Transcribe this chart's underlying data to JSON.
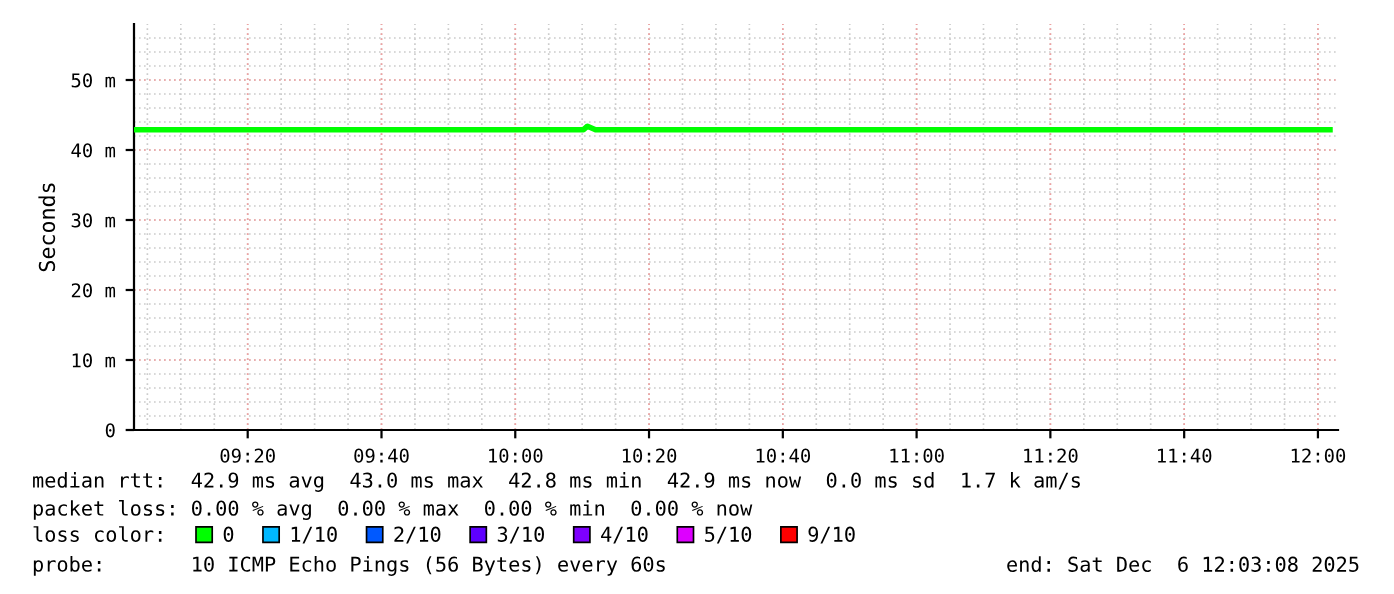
{
  "chart_data": {
    "type": "line",
    "ylabel": "Seconds",
    "x": [
      9.05,
      10.17,
      10.18,
      10.2,
      12.03
    ],
    "series": [
      {
        "name": "0",
        "color": "#00ff00",
        "values": [
          42.9,
          42.9,
          43.4,
          42.9,
          42.9
        ]
      },
      {
        "name": "1/10",
        "color": "#00b8ff",
        "values": [
          null,
          null,
          null,
          null,
          null
        ]
      },
      {
        "name": "2/10",
        "color": "#0059ff",
        "values": [
          null,
          null,
          null,
          null,
          null
        ]
      },
      {
        "name": "3/10",
        "color": "#5e00ff",
        "values": [
          null,
          null,
          null,
          null,
          null
        ]
      },
      {
        "name": "4/10",
        "color": "#7e00ff",
        "values": [
          null,
          null,
          null,
          null,
          null
        ]
      },
      {
        "name": "5/10",
        "color": "#dd00ff",
        "values": [
          null,
          null,
          null,
          null,
          null
        ]
      },
      {
        "name": "9/10",
        "color": "#ff0000",
        "values": [
          null,
          null,
          null,
          null,
          null
        ]
      }
    ],
    "legend_title": "loss color:",
    "legend": "bottom",
    "xlim": [
      9.05,
      12.05
    ],
    "xticks": [
      {
        "value": 9.3333,
        "label": "09:20"
      },
      {
        "value": 9.6667,
        "label": "09:40"
      },
      {
        "value": 10,
        "label": "10:00"
      },
      {
        "value": 10.3333,
        "label": "10:20"
      },
      {
        "value": 10.6667,
        "label": "10:40"
      },
      {
        "value": 11,
        "label": "11:00"
      },
      {
        "value": 11.3333,
        "label": "11:20"
      },
      {
        "value": 11.6667,
        "label": "11:40"
      },
      {
        "value": 12,
        "label": "12:00"
      }
    ],
    "ylim": [
      0,
      58
    ],
    "yticks": [
      0,
      {
        "value": 10,
        "label": "10 m"
      },
      {
        "value": 20,
        "label": "20 m"
      },
      {
        "value": 30,
        "label": "30 m"
      },
      {
        "value": 40,
        "label": "40 m"
      },
      {
        "value": 50,
        "label": "50 m"
      }
    ],
    "grid": true,
    "annotations": [
      "median rtt:  42.9 ms avg  43.0 ms max  42.8 ms min  42.9 ms now  0.0 ms sd  1.7 k am/s",
      "packet loss: 0.00 % avg  0.00 % max  0.00 % min  0.00 % now",
      "probe:       10 ICMP Echo Pings (56 Bytes) every 60s",
      "end: Sat Dec  6 12:03:08 2025"
    ]
  }
}
